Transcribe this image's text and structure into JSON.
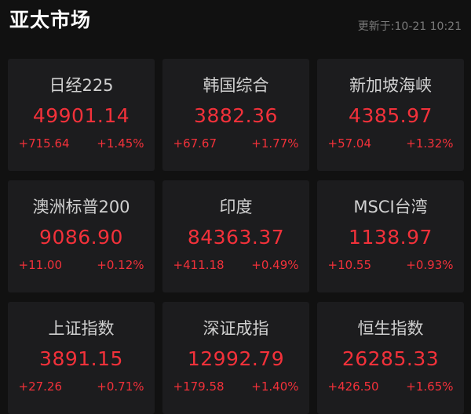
{
  "header": {
    "title": "亚太市场",
    "updated": "更新于:10-21 10:21"
  },
  "colors": {
    "up": "#f2313a",
    "background": "#111111",
    "card": "#1c1c1e"
  },
  "indices": [
    {
      "name": "日经225",
      "price": "49901.14",
      "change": "+715.64",
      "pct": "+1.45%"
    },
    {
      "name": "韩国综合",
      "price": "3882.36",
      "change": "+67.67",
      "pct": "+1.77%"
    },
    {
      "name": "新加坡海峡",
      "price": "4385.97",
      "change": "+57.04",
      "pct": "+1.32%"
    },
    {
      "name": "澳洲标普200",
      "price": "9086.90",
      "change": "+11.00",
      "pct": "+0.12%"
    },
    {
      "name": "印度",
      "price": "84363.37",
      "change": "+411.18",
      "pct": "+0.49%"
    },
    {
      "name": "MSCI台湾",
      "price": "1138.97",
      "change": "+10.55",
      "pct": "+0.93%"
    },
    {
      "name": "上证指数",
      "price": "3891.15",
      "change": "+27.26",
      "pct": "+0.71%"
    },
    {
      "name": "深证成指",
      "price": "12992.79",
      "change": "+179.58",
      "pct": "+1.40%"
    },
    {
      "name": "恒生指数",
      "price": "26285.33",
      "change": "+426.50",
      "pct": "+1.65%"
    }
  ]
}
